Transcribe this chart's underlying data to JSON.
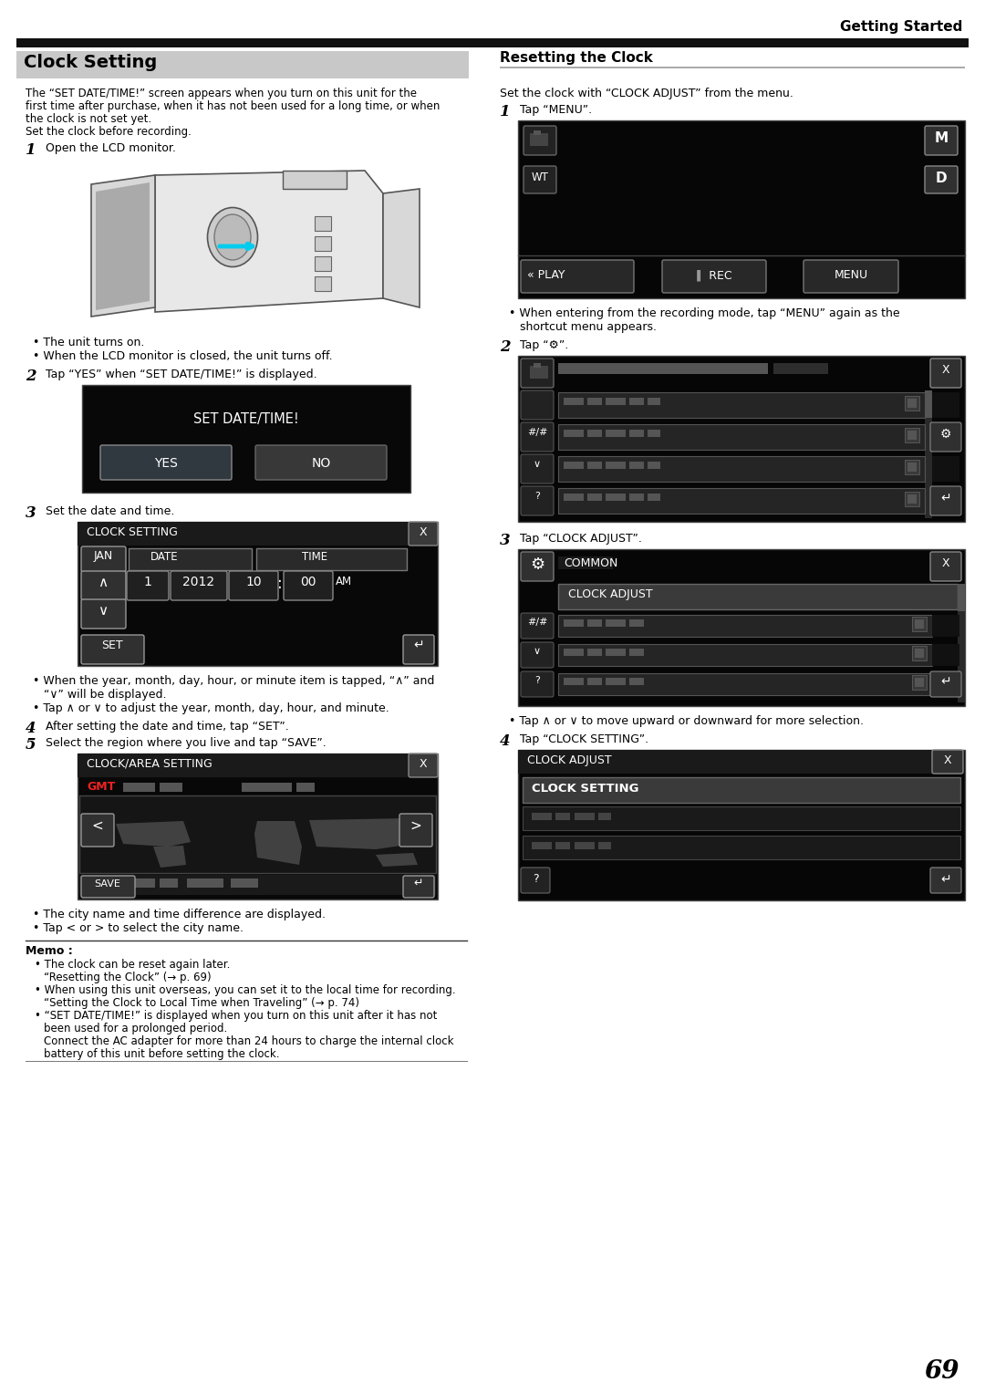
{
  "page_number": "69",
  "header_text": "Getting Started",
  "section_title": "Clock Setting",
  "section_title_bg": "#c8c8c8",
  "right_section_title": "Resetting the Clock",
  "bg_color": "#ffffff",
  "header_bar_color": "#111111",
  "left_intro_lines": [
    "The “SET DATE/TIME!” screen appears when you turn on this unit for the",
    "first time after purchase, when it has not been used for a long time, or when",
    "the clock is not set yet.",
    "Set the clock before recording."
  ],
  "step1_left": "Open the LCD monitor.",
  "step2_left": "Tap “YES” when “SET DATE/TIME!” is displayed.",
  "step3_left": "Set the date and time.",
  "step4_left": "After setting the date and time, tap “SET”.",
  "step5_left": "Select the region where you live and tap “SAVE”.",
  "bullet1_left": "The unit turns on.",
  "bullet2_left": "When the LCD monitor is closed, the unit turns off.",
  "bullet3a_left": "When the year, month, day, hour, or minute item is tapped, “∧” and",
  "bullet3b_left": "“∨” will be displayed.",
  "bullet4_left": "Tap ∧ or ∨ to adjust the year, month, day, hour, and minute.",
  "bullet5_left": "The city name and time difference are displayed.",
  "bullet6_left": "Tap < or > to select the city name.",
  "memo_title": "Memo :",
  "memo1": "The clock can be reset again later.",
  "memo2": "“Resetting the Clock” (→ p. 69)",
  "memo3": "When using this unit overseas, you can set it to the local time for recording.",
  "memo4": "“Setting the Clock to Local Time when Traveling” (→ p. 74)",
  "memo5a": "“SET DATE/TIME!” is displayed when you turn on this unit after it has not",
  "memo5b": "been used for a prolonged period.",
  "memo5c": "Connect the AC adapter for more than 24 hours to charge the internal clock",
  "memo5d": "battery of this unit before setting the clock.",
  "right_intro": "Set the clock with “CLOCK ADJUST” from the menu.",
  "right_step1": "Tap “MENU”.",
  "right_step2": "Tap “⚙”.",
  "right_step3": "Tap “CLOCK ADJUST”.",
  "right_step4": "Tap “CLOCK SETTING”.",
  "right_bullet1a": "When entering from the recording mode, tap “MENU” again as the",
  "right_bullet1b": "shortcut menu appears.",
  "right_bullet2": "Tap ∧ or ∨ to move upward or downward for more selection."
}
